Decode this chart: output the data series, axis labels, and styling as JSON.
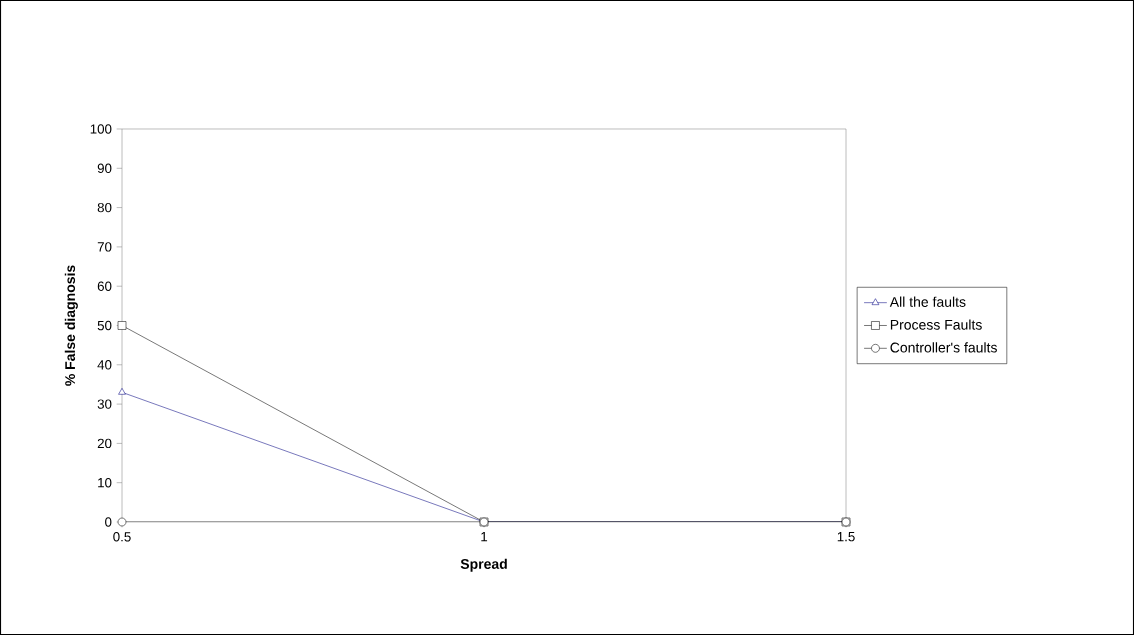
{
  "chart_data": {
    "type": "line",
    "xlabel": "Spread",
    "ylabel": "% False diagnosis",
    "x": [
      0.5,
      1,
      1.5
    ],
    "series": [
      {
        "name": "All the faults",
        "color": "#000080",
        "marker": "triangle",
        "values": [
          33,
          0,
          0
        ]
      },
      {
        "name": "Process Faults",
        "color": "#000000",
        "marker": "square",
        "values": [
          50,
          0,
          0
        ]
      },
      {
        "name": "Controller's faults",
        "color": "#000000",
        "marker": "circle",
        "values": [
          0,
          0,
          0
        ]
      }
    ],
    "xlim": [
      0.5,
      1.5
    ],
    "xticks": [
      0.5,
      1,
      1.5
    ],
    "ylim": [
      0,
      100
    ],
    "yticks": [
      0,
      10,
      20,
      30,
      40,
      50,
      60,
      70,
      80,
      90,
      100
    ],
    "grid": false,
    "legend": "right",
    "line_style": "solid"
  }
}
